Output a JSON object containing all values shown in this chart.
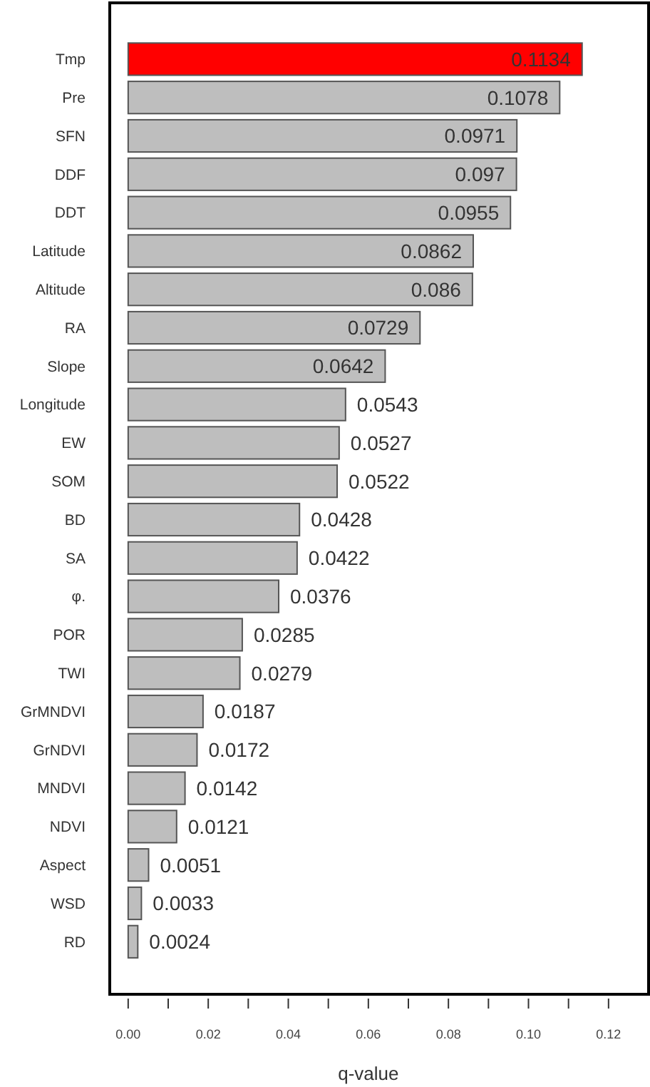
{
  "chart_data": {
    "type": "bar",
    "orientation": "horizontal",
    "xlabel": "q-value",
    "categories": [
      "Tmp",
      "Pre",
      "SFN",
      "DDF",
      "DDT",
      "Latitude",
      "Altitude",
      "RA",
      "Slope",
      "Longitude",
      "EW",
      "SOM",
      "BD",
      "SA",
      "φ.",
      "POR",
      "TWI",
      "GrMNDVI",
      "GrNDVI",
      "MNDVI",
      "NDVI",
      "Aspect",
      "WSD",
      "RD"
    ],
    "values": [
      0.1134,
      0.1078,
      0.0971,
      0.097,
      0.0955,
      0.0862,
      0.086,
      0.0729,
      0.0642,
      0.0543,
      0.0527,
      0.0522,
      0.0428,
      0.0422,
      0.0376,
      0.0285,
      0.0279,
      0.0187,
      0.0172,
      0.0142,
      0.0121,
      0.0051,
      0.0033,
      0.0024
    ],
    "colors": [
      "#ff0000",
      "#bebebe",
      "#bebebe",
      "#bebebe",
      "#bebebe",
      "#bebebe",
      "#bebebe",
      "#bebebe",
      "#bebebe",
      "#bebebe",
      "#bebebe",
      "#bebebe",
      "#bebebe",
      "#bebebe",
      "#bebebe",
      "#bebebe",
      "#bebebe",
      "#bebebe",
      "#bebebe",
      "#bebebe",
      "#bebebe",
      "#bebebe",
      "#bebebe",
      "#bebebe"
    ],
    "data_labels": true,
    "xlim": [
      -0.0046,
      0.13
    ],
    "xticks": [
      {
        "value": 0,
        "label": "0.00"
      },
      {
        "value": 0.01,
        "label": null
      },
      {
        "value": 0.02,
        "label": "0.02"
      },
      {
        "value": 0.03,
        "label": null
      },
      {
        "value": 0.04,
        "label": "0.04"
      },
      {
        "value": 0.05,
        "label": null
      },
      {
        "value": 0.06,
        "label": "0.06"
      },
      {
        "value": 0.07,
        "label": null
      },
      {
        "value": 0.08,
        "label": "0.08"
      },
      {
        "value": 0.09,
        "label": null
      },
      {
        "value": 0.1,
        "label": "0.10"
      },
      {
        "value": 0.11,
        "label": null
      },
      {
        "value": 0.12,
        "label": "0.12"
      }
    ],
    "grid": false
  }
}
